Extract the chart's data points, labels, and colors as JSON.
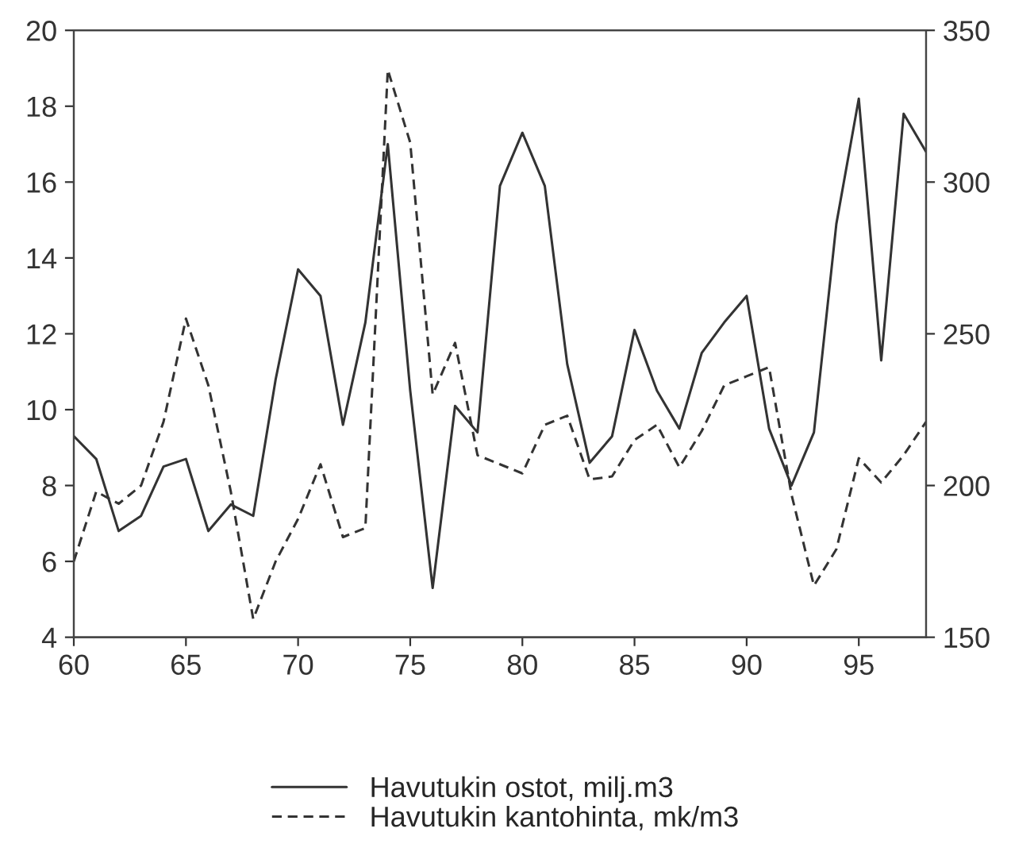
{
  "chart_data": {
    "type": "line",
    "x": [
      60,
      61,
      62,
      63,
      64,
      65,
      66,
      67,
      68,
      69,
      70,
      71,
      72,
      73,
      74,
      75,
      76,
      77,
      78,
      79,
      80,
      81,
      82,
      83,
      84,
      85,
      86,
      87,
      88,
      89,
      90,
      91,
      92,
      93,
      94,
      95,
      96,
      97,
      98
    ],
    "series": [
      {
        "name": "Havutukin ostot, milj.m3",
        "color": "#333333",
        "line_style": "solid",
        "axis": "y",
        "values": [
          9.3,
          8.7,
          6.8,
          7.2,
          8.5,
          8.7,
          6.8,
          7.5,
          7.2,
          10.8,
          13.7,
          13.0,
          9.6,
          12.3,
          17.0,
          10.5,
          5.3,
          10.1,
          9.4,
          15.9,
          17.3,
          15.9,
          11.2,
          8.6,
          9.3,
          12.1,
          10.5,
          9.5,
          11.5,
          12.3,
          13.0,
          9.5,
          8.0,
          9.4,
          14.9,
          18.2,
          11.3,
          17.8,
          16.8
        ]
      },
      {
        "name": "Havutukin kantohinta, mk/m3",
        "color": "#333333",
        "line_style": "dashed",
        "axis": "y2",
        "values": [
          175,
          198,
          194,
          200,
          221,
          255,
          233,
          198,
          156,
          175,
          189,
          207,
          183,
          186,
          337,
          313,
          230,
          247,
          210,
          207,
          204,
          220,
          223,
          202,
          203,
          215,
          220,
          206,
          218,
          233,
          236,
          239,
          197,
          167,
          179,
          209,
          201,
          210,
          221
        ]
      }
    ],
    "xlim": [
      60,
      98
    ],
    "xticks": [
      60,
      65,
      70,
      75,
      80,
      85,
      90,
      95
    ],
    "ylim": [
      4,
      20
    ],
    "yticks": [
      4,
      6,
      8,
      10,
      12,
      14,
      16,
      18,
      20
    ],
    "y2lim": [
      150,
      350
    ],
    "y2ticks": [
      150,
      200,
      250,
      300,
      350
    ],
    "grid": false,
    "legend": "bottom",
    "marker": "none"
  }
}
